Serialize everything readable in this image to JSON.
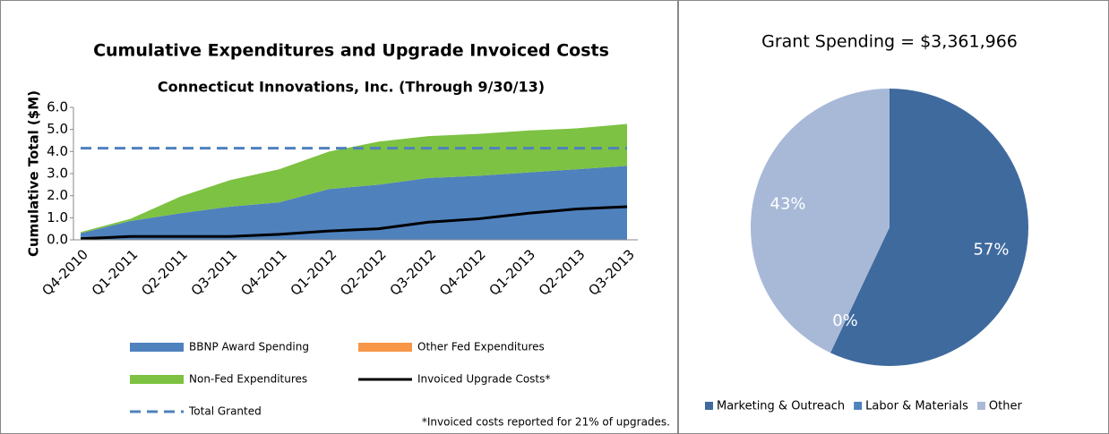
{
  "chart_data": [
    {
      "type": "area",
      "title": "Cumulative Expenditures and Upgrade Invoiced Costs",
      "subtitle": "Connecticut Innovations, Inc. (Through 9/30/13)",
      "y_label": "Cumulative Total ($M)",
      "footnote": "*Invoiced costs reported for 21% of upgrades.",
      "categories": [
        "Q4-2010",
        "Q1-2011",
        "Q2-2011",
        "Q3-2011",
        "Q4-2011",
        "Q1-2012",
        "Q2-2012",
        "Q3-2012",
        "Q4-2012",
        "Q1-2013",
        "Q2-2013",
        "Q3-2013"
      ],
      "series": [
        {
          "name": "BBNP Award Spending",
          "color": "#4f81bd",
          "type": "area",
          "values": [
            0.3,
            0.85,
            1.2,
            1.5,
            1.7,
            2.3,
            2.5,
            2.8,
            2.9,
            3.05,
            3.2,
            3.35
          ]
        },
        {
          "name": "Other Fed Expenditures",
          "color": "#f79646",
          "type": "area",
          "values": [
            0,
            0,
            0,
            0,
            0,
            0,
            0,
            0,
            0,
            0,
            0,
            0
          ]
        },
        {
          "name": "Non-Fed Expenditures",
          "color": "#7dc242",
          "type": "area",
          "values": [
            0.05,
            0.1,
            0.75,
            1.2,
            1.5,
            1.7,
            1.95,
            1.9,
            1.9,
            1.9,
            1.85,
            1.9
          ]
        },
        {
          "name": "Invoiced Upgrade Costs*",
          "color": "#000000",
          "type": "line",
          "values": [
            0.05,
            0.15,
            0.15,
            0.15,
            0.25,
            0.4,
            0.5,
            0.8,
            0.95,
            1.2,
            1.4,
            1.5
          ]
        },
        {
          "name": "Total Granted",
          "color": "#4f81bd",
          "type": "line",
          "dashed": true,
          "values": [
            4.15,
            4.15,
            4.15,
            4.15,
            4.15,
            4.15,
            4.15,
            4.15,
            4.15,
            4.15,
            4.15,
            4.15
          ]
        }
      ],
      "stacked": true,
      "ylim": [
        0,
        6
      ],
      "yticks": [
        {
          "value": 0,
          "label": "0.0"
        },
        {
          "value": 1,
          "label": "1.0"
        },
        {
          "value": 2,
          "label": "2.0"
        },
        {
          "value": 3,
          "label": "3.0"
        },
        {
          "value": 4,
          "label": "4.0"
        },
        {
          "value": 5,
          "label": "5.0"
        },
        {
          "value": 6,
          "label": "6.0"
        }
      ]
    },
    {
      "type": "pie",
      "title": "Grant Spending = $3,361,966",
      "categories": [
        "Marketing & Outreach",
        "Labor & Materials",
        "Other"
      ],
      "values": [
        57,
        0,
        43
      ],
      "value_labels": [
        "57%",
        "0%",
        "43%"
      ],
      "colors": [
        "#3f6a9e",
        "#4f81bd",
        "#a8b9d8"
      ],
      "legend": "bottom"
    }
  ]
}
